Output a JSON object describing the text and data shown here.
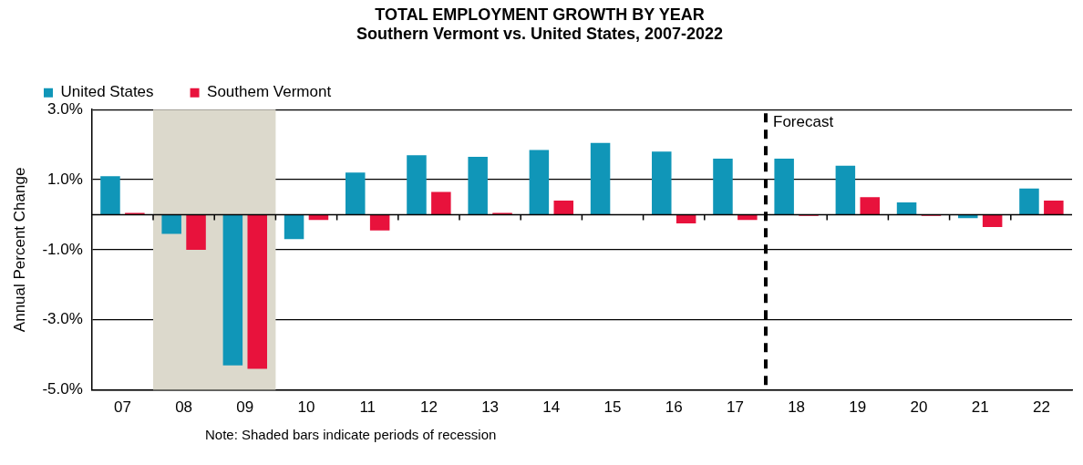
{
  "chart_data": {
    "type": "bar",
    "title": "TOTAL EMPLOYMENT GROWTH BY YEAR",
    "subtitle": "Southern Vermont vs. United States, 2007-2022",
    "ylabel": "Annual Percent Change",
    "categories": [
      "07",
      "08",
      "09",
      "10",
      "11",
      "12",
      "13",
      "14",
      "15",
      "16",
      "17",
      "18",
      "19",
      "20",
      "21",
      "22"
    ],
    "series": [
      {
        "name": "United States",
        "color": "#1096b8",
        "values": [
          1.1,
          -0.55,
          -4.3,
          -0.7,
          1.2,
          1.7,
          1.65,
          1.85,
          2.05,
          1.8,
          1.6,
          1.6,
          1.4,
          0.35,
          -0.1,
          0.75
        ]
      },
      {
        "name": "Southem Vermont",
        "color": "#e8123c",
        "values": [
          0.05,
          -1.0,
          -4.4,
          -0.15,
          -0.45,
          0.65,
          0.05,
          0.4,
          0.0,
          -0.25,
          -0.15,
          -0.03,
          0.5,
          -0.03,
          -0.35,
          0.4
        ]
      }
    ],
    "ylim": [
      -5,
      3
    ],
    "yticks": [
      {
        "value": -5,
        "label": "-5.0%"
      },
      {
        "value": -3,
        "label": "-3.0%"
      },
      {
        "value": -1,
        "label": "-1.0%"
      },
      {
        "value": 1,
        "label": "1.0%"
      },
      {
        "value": 3,
        "label": "3.0%"
      }
    ],
    "grid": "y",
    "legend": "top left",
    "bands": [
      {
        "axis": "x",
        "from": "08",
        "to": "09",
        "color": "#dcd9cc"
      }
    ],
    "ref_lines": [
      {
        "axis": "x",
        "value": "18",
        "label": "Forecast",
        "line_style": "dashed",
        "color": "#000000"
      }
    ],
    "annotations": [
      "Note: Shaded bars indicate periods of recession"
    ]
  }
}
